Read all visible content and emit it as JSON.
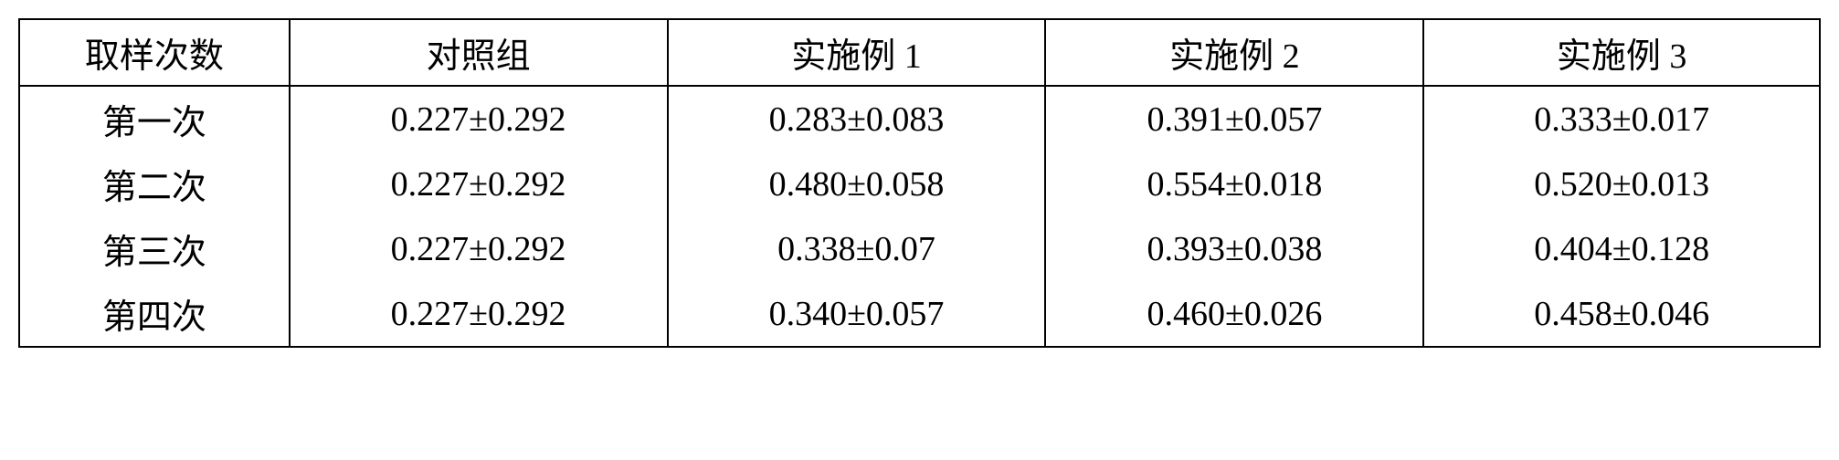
{
  "table": {
    "type": "table",
    "background_color": "#ffffff",
    "border_color": "#000000",
    "border_width": 2,
    "font_family": "SimSun",
    "font_size": 38,
    "text_color": "#000000",
    "text_align": "center",
    "column_widths_pct": [
      15,
      21,
      21,
      21,
      22
    ],
    "columns": [
      "取样次数",
      "对照组",
      "实施例 1",
      "实施例 2",
      "实施例 3"
    ],
    "rows": [
      [
        "第一次",
        "0.227±0.292",
        "0.283±0.083",
        "0.391±0.057",
        "0.333±0.017"
      ],
      [
        "第二次",
        "0.227±0.292",
        "0.480±0.058",
        "0.554±0.018",
        "0.520±0.013"
      ],
      [
        "第三次",
        "0.227±0.292",
        "0.338±0.07",
        "0.393±0.038",
        "0.404±0.128"
      ],
      [
        "第四次",
        "0.227±0.292",
        "0.340±0.057",
        "0.460±0.026",
        "0.458±0.046"
      ]
    ]
  }
}
